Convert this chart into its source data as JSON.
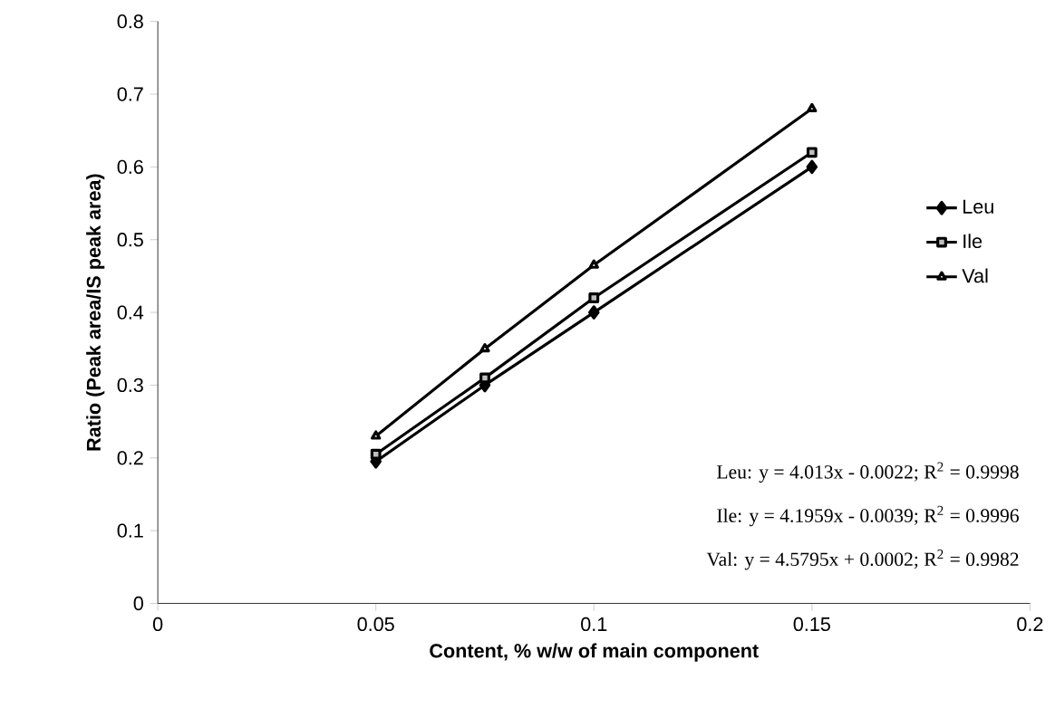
{
  "chart_data": {
    "type": "line",
    "xlabel": "Content, % w/w of main component",
    "ylabel": "Ratio (Peak area/IS peak area)",
    "x": [
      0.05,
      0.075,
      0.1,
      0.15
    ],
    "series": [
      {
        "name": "Leu",
        "color": "#000000",
        "marker": "diamond",
        "values": [
          0.195,
          0.3,
          0.4,
          0.6
        ]
      },
      {
        "name": "Ile",
        "color": "#000000",
        "marker": "square",
        "values": [
          0.205,
          0.31,
          0.42,
          0.62
        ]
      },
      {
        "name": "Val",
        "color": "#000000",
        "marker": "triangle",
        "values": [
          0.23,
          0.35,
          0.465,
          0.68
        ]
      }
    ],
    "xlim": [
      0,
      0.2
    ],
    "xticks": [
      0,
      0.05,
      0.1,
      0.15,
      0.2
    ],
    "ylim": [
      0,
      0.8
    ],
    "yticks": [
      0,
      0.1,
      0.2,
      0.3,
      0.4,
      0.5,
      0.6,
      0.7,
      0.8
    ],
    "legend": "right",
    "grid": false,
    "line_style": "solid",
    "annotations": [
      "Leu: y = 4.013x - 0.0022;  R$^{2}$ = 0.9998",
      "Ile: y = 4.1959x - 0.0039;  R$^{2}$ = 0.9996",
      "Val: y = 4.5795x + 0.0002;  R$^{2}$ = 0.9982"
    ]
  }
}
